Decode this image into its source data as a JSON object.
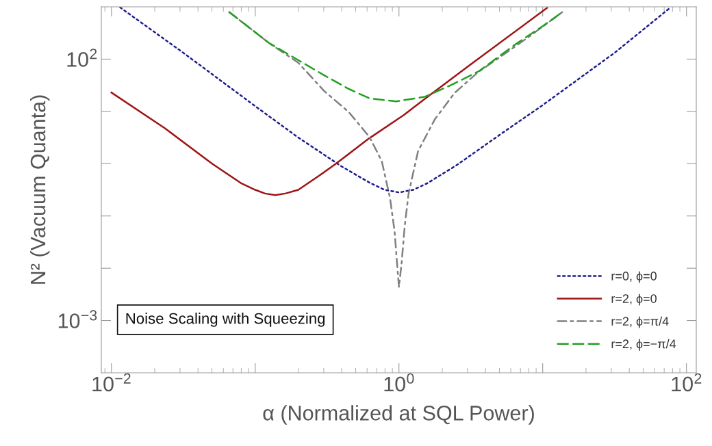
{
  "chart_data": {
    "type": "line",
    "log": "xy",
    "xlabel": "α (Normalized at SQL Power)",
    "ylabel": "N² (Vacuum Quanta)",
    "xlim": [
      0.0085,
      117
    ],
    "ylim": [
      0.0001,
      1000
    ],
    "xticks": [
      {
        "value": 0.01,
        "label": "10$^{−2}$"
      },
      {
        "value": 0.1,
        "label": null
      },
      {
        "value": 1,
        "label": "10$^{0}$"
      },
      {
        "value": 10,
        "label": null
      },
      {
        "value": 100,
        "label": "10$^{2}$"
      }
    ],
    "yticks": [
      {
        "value": 100,
        "label": "10$^{2}$"
      },
      {
        "value": 10,
        "label": null
      },
      {
        "value": 1,
        "label": null
      },
      {
        "value": 0.1,
        "label": null
      },
      {
        "value": 0.01,
        "label": null
      },
      {
        "value": 0.001,
        "label": "10$^{−3}$"
      }
    ],
    "grid": false,
    "legend": "bottom right",
    "marker": "none",
    "annotations": [
      "Noise Scaling with Squeezing"
    ],
    "series": [
      {
        "name": "r=0, ϕ=0",
        "color": "#1c1c8c",
        "line_style": "dotted",
        "x": [
          0.01148,
          0.03162,
          0.1,
          0.1995,
          0.398,
          0.631,
          0.794,
          1,
          1.259,
          1.585,
          2.512,
          5.012,
          10,
          31.62,
          77.6
        ],
        "values": [
          977,
          132,
          12.6,
          3.16,
          0.891,
          0.427,
          0.316,
          0.282,
          0.316,
          0.427,
          0.933,
          3.55,
          13.2,
          132,
          977
        ]
      },
      {
        "name": "r=2, ϕ=0",
        "color": "#9e1414",
        "line_style": "solid",
        "x": [
          0.01,
          0.02344,
          0.0501,
          0.0794,
          0.1,
          0.117,
          0.138,
          0.162,
          0.1995,
          0.282,
          0.3606,
          0.617,
          1.079,
          1.514,
          3.162,
          10.72
        ],
        "values": [
          22.9,
          4.79,
          1,
          0.427,
          0.316,
          0.269,
          0.251,
          0.269,
          0.316,
          0.603,
          0.977,
          3.02,
          8.51,
          17.4,
          79.4,
          955
        ]
      },
      {
        "name": "r=2, ϕ=π/4",
        "color": "#808080",
        "line_style": "dashdot",
        "x": [
          0.066,
          0.0891,
          0.1245,
          0.1995,
          0.302,
          0.447,
          0.624,
          0.759,
          0.867,
          0.933,
          0.968,
          1,
          1.045,
          1.096,
          1.167,
          1.358,
          1.778,
          2.432,
          3.548,
          5.37,
          7.943,
          13.7
        ],
        "values": [
          794,
          417,
          204,
          85.1,
          24.5,
          9.77,
          3.24,
          1.12,
          0.219,
          0.0501,
          0.0132,
          0.00437,
          0.0132,
          0.0631,
          0.269,
          1.74,
          7.08,
          22.4,
          56.2,
          123,
          263,
          794
        ]
      },
      {
        "name": "r=2, ϕ=−π/4",
        "color": "#22a022",
        "line_style": "dashed",
        "x": [
          0.066,
          0.0891,
          0.1245,
          0.1995,
          0.302,
          0.447,
          0.624,
          0.955,
          1.514,
          2.291,
          3.606,
          6.516,
          10,
          13.7
        ],
        "values": [
          794,
          417,
          204,
          95.5,
          49,
          26.9,
          17.8,
          15.5,
          19.1,
          31.6,
          58.9,
          195,
          427,
          794
        ]
      }
    ]
  }
}
